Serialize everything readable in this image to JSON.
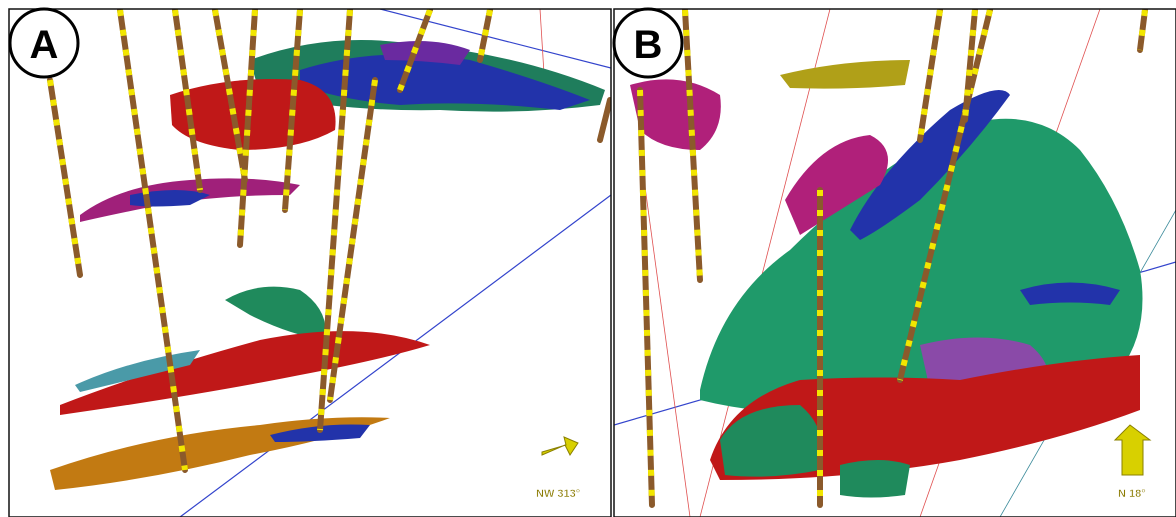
{
  "panels": [
    {
      "label": "A",
      "compass": "NW 313°"
    },
    {
      "label": "B",
      "compass": "N 18°"
    }
  ]
}
